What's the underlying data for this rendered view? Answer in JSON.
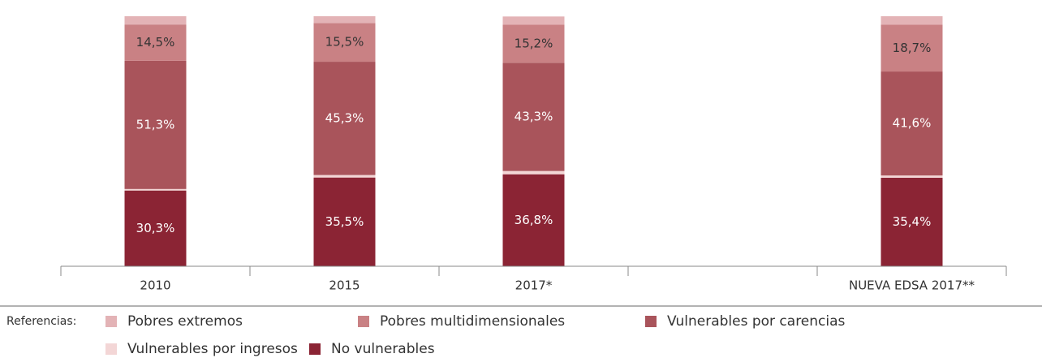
{
  "chart_data": {
    "type": "stacked_bar",
    "categories": [
      "2010",
      "2015",
      "2017*",
      null,
      "NUEVA EDSA 2017**"
    ],
    "legend_title": "Referencias:",
    "series": [
      {
        "name": "Pobres extremos",
        "color": "#e3b3b6",
        "values": [
          3.3,
          2.7,
          3.3,
          null,
          3.4
        ],
        "value_labels": [
          "3,3%",
          "2,7%",
          "3,3%",
          null,
          "3,4%"
        ]
      },
      {
        "name": "Pobres multidimensionales",
        "color": "#c98184",
        "values": [
          14.5,
          15.5,
          15.2,
          null,
          18.7
        ],
        "value_labels": [
          "14,5%",
          "15,5%",
          "15,2%",
          null,
          "18,7%"
        ]
      },
      {
        "name": "Vulnerables por carencias",
        "color": "#a9545b",
        "values": [
          51.3,
          45.3,
          43.3,
          null,
          41.6
        ],
        "value_labels": [
          "51,3%",
          "45,3%",
          "43,3%",
          null,
          "41,6%"
        ]
      },
      {
        "name": "Vulnerables por ingresos",
        "color": "#f3d6d6",
        "values": [
          0.6,
          1.0,
          1.3,
          null,
          0.9
        ],
        "value_labels": [
          "0,6%",
          "1,0%",
          "1,3%",
          null,
          "0,9%"
        ]
      },
      {
        "name": "No vulnerables",
        "color": "#8b2434",
        "values": [
          30.3,
          35.5,
          36.8,
          null,
          35.4
        ],
        "value_labels": [
          "30,3%",
          "35,5%",
          "36,8%",
          null,
          "35,4%"
        ]
      }
    ]
  }
}
